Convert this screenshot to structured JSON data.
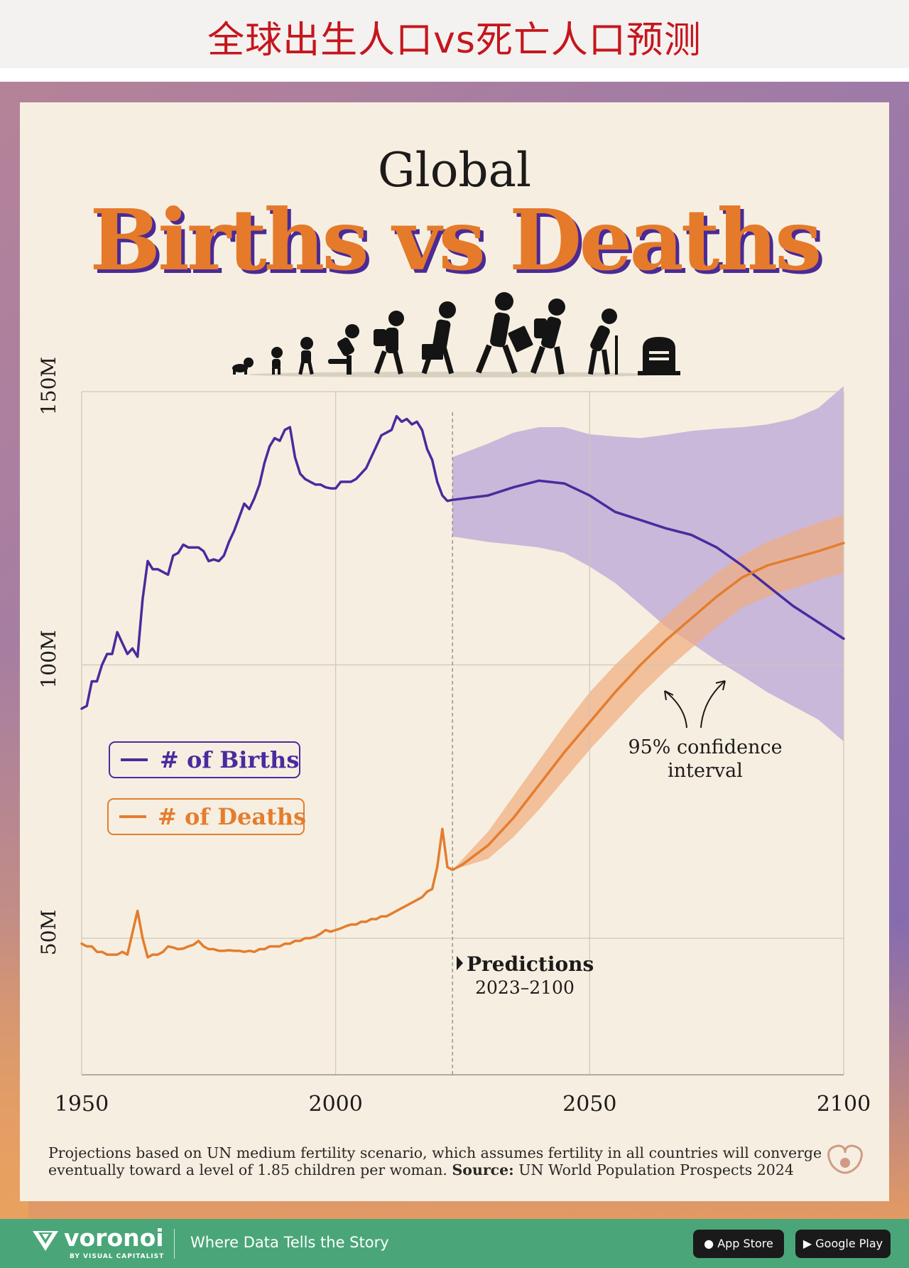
{
  "banner_title": "全球出生人口vs死亡人口预测",
  "header": {
    "line1": "Global",
    "line2": "Births vs Deaths"
  },
  "legend": {
    "births": "# of Births",
    "deaths": "# of Deaths"
  },
  "annotation_ci": {
    "line1": "95% confidence",
    "line2": "interval"
  },
  "annotation_pred": {
    "line1": "Predictions",
    "line2": "2023–2100"
  },
  "note": {
    "line1": "Projections based on UN medium fertility scenario, which assumes fertility in all countries will converge",
    "line2_a": "eventually toward a level of 1.85 children per woman. ",
    "line2_b": "Source:",
    "line2_c": " UN World Population Prospects 2024"
  },
  "footer": {
    "brand": "voronoi",
    "brand_sub": "BY VISUAL CAPITALIST",
    "tagline": "Where Data Tells the Story",
    "store1": "App Store",
    "store2": "Google Play"
  },
  "colors": {
    "births": "#4a2b9e",
    "deaths": "#e47d2e",
    "births_ci": "#b9a6d6",
    "deaths_ci": "#f0ad80",
    "title_orange": "#e57a2b",
    "title_shadow": "#4b2a96",
    "banner_red": "#c5161d",
    "footer_green": "#4aa678"
  },
  "icons": [
    "baby-crawling-icon",
    "toddler-icon",
    "child-icon",
    "kid-running-icon",
    "student-backpack-icon",
    "worker-briefcase-icon",
    "adult-walking-icon",
    "elder-backpack-icon",
    "elder-cane-icon",
    "gravestone-icon",
    "voronoi-logo-icon",
    "apple-icon",
    "google-play-icon",
    "visual-capitalist-mark-icon"
  ],
  "chart_data": {
    "type": "line",
    "title": "Global Births vs Deaths",
    "xlabel": "",
    "ylabel": "",
    "xlim": [
      1950,
      2100
    ],
    "ylim": [
      25,
      150
    ],
    "x_ticks": [
      1950,
      2000,
      2050,
      2100
    ],
    "y_ticks": [
      {
        "value": 50,
        "label": "50M"
      },
      {
        "value": 100,
        "label": "100M"
      },
      {
        "value": 150,
        "label": "150M"
      }
    ],
    "grid": true,
    "legend_position": "left",
    "prediction_start": 2023,
    "series": [
      {
        "name": "# of Births",
        "color": "#4a2b9e",
        "points": [
          [
            1950,
            92
          ],
          [
            1951,
            92.5
          ],
          [
            1952,
            97
          ],
          [
            1953,
            97
          ],
          [
            1954,
            100
          ],
          [
            1955,
            102
          ],
          [
            1956,
            102
          ],
          [
            1957,
            106
          ],
          [
            1958,
            104
          ],
          [
            1959,
            102
          ],
          [
            1960,
            103
          ],
          [
            1961,
            101.5
          ],
          [
            1962,
            112
          ],
          [
            1963,
            119
          ],
          [
            1964,
            117.5
          ],
          [
            1965,
            117.5
          ],
          [
            1966,
            117
          ],
          [
            1967,
            116.5
          ],
          [
            1968,
            120
          ],
          [
            1969,
            120.5
          ],
          [
            1970,
            122
          ],
          [
            1971,
            121.5
          ],
          [
            1972,
            121.5
          ],
          [
            1973,
            121.5
          ],
          [
            1974,
            120.8
          ],
          [
            1975,
            119
          ],
          [
            1976,
            119.3
          ],
          [
            1977,
            119
          ],
          [
            1978,
            120
          ],
          [
            1979,
            122.5
          ],
          [
            1980,
            124.5
          ],
          [
            1981,
            127
          ],
          [
            1982,
            129.5
          ],
          [
            1983,
            128.5
          ],
          [
            1984,
            130.5
          ],
          [
            1985,
            133
          ],
          [
            1986,
            137
          ],
          [
            1987,
            140
          ],
          [
            1988,
            141.5
          ],
          [
            1989,
            141
          ],
          [
            1990,
            143
          ],
          [
            1991,
            143.5
          ],
          [
            1992,
            138
          ],
          [
            1993,
            135
          ],
          [
            1994,
            134
          ],
          [
            1995,
            133.5
          ],
          [
            1996,
            133
          ],
          [
            1997,
            133
          ],
          [
            1998,
            132.5
          ],
          [
            1999,
            132.3
          ],
          [
            2000,
            132.3
          ],
          [
            2001,
            133.5
          ],
          [
            2002,
            133.5
          ],
          [
            2003,
            133.5
          ],
          [
            2004,
            134
          ],
          [
            2005,
            135
          ],
          [
            2006,
            136
          ],
          [
            2007,
            138
          ],
          [
            2008,
            140
          ],
          [
            2009,
            142
          ],
          [
            2010,
            142.5
          ],
          [
            2011,
            143
          ],
          [
            2012,
            145.5
          ],
          [
            2013,
            144.5
          ],
          [
            2014,
            145
          ],
          [
            2015,
            144
          ],
          [
            2016,
            144.5
          ],
          [
            2017,
            143
          ],
          [
            2018,
            139.5
          ],
          [
            2019,
            137.5
          ],
          [
            2020,
            133.5
          ],
          [
            2021,
            131
          ],
          [
            2022,
            130
          ],
          [
            2023,
            130.2
          ],
          [
            2030,
            131
          ],
          [
            2035,
            132.5
          ],
          [
            2040,
            133.7
          ],
          [
            2045,
            133.2
          ],
          [
            2050,
            131
          ],
          [
            2055,
            128
          ],
          [
            2060,
            126.5
          ],
          [
            2065,
            125
          ],
          [
            2070,
            123.8
          ],
          [
            2075,
            121.5
          ],
          [
            2080,
            118.2
          ],
          [
            2085,
            114.5
          ],
          [
            2090,
            110.8
          ],
          [
            2095,
            107.8
          ],
          [
            2100,
            104.8
          ]
        ]
      },
      {
        "name": "# of Deaths",
        "color": "#e47d2e",
        "points": [
          [
            1950,
            49
          ],
          [
            1951,
            48.5
          ],
          [
            1952,
            48.5
          ],
          [
            1953,
            47.5
          ],
          [
            1954,
            47.5
          ],
          [
            1955,
            47
          ],
          [
            1956,
            47
          ],
          [
            1957,
            47
          ],
          [
            1958,
            47.5
          ],
          [
            1959,
            47
          ],
          [
            1960,
            51
          ],
          [
            1961,
            55
          ],
          [
            1962,
            50
          ],
          [
            1963,
            46.5
          ],
          [
            1964,
            47
          ],
          [
            1965,
            47
          ],
          [
            1966,
            47.5
          ],
          [
            1967,
            48.5
          ],
          [
            1968,
            48.3
          ],
          [
            1969,
            48
          ],
          [
            1970,
            48.1
          ],
          [
            1971,
            48.5
          ],
          [
            1972,
            48.8
          ],
          [
            1973,
            49.5
          ],
          [
            1974,
            48.5
          ],
          [
            1975,
            48
          ],
          [
            1976,
            48
          ],
          [
            1977,
            47.7
          ],
          [
            1978,
            47.7
          ],
          [
            1979,
            47.8
          ],
          [
            1980,
            47.7
          ],
          [
            1981,
            47.7
          ],
          [
            1982,
            47.5
          ],
          [
            1983,
            47.7
          ],
          [
            1984,
            47.5
          ],
          [
            1985,
            48
          ],
          [
            1986,
            48
          ],
          [
            1987,
            48.5
          ],
          [
            1988,
            48.5
          ],
          [
            1989,
            48.5
          ],
          [
            1990,
            49
          ],
          [
            1991,
            49
          ],
          [
            1992,
            49.5
          ],
          [
            1993,
            49.5
          ],
          [
            1994,
            50
          ],
          [
            1995,
            50
          ],
          [
            1996,
            50.3
          ],
          [
            1997,
            50.8
          ],
          [
            1998,
            51.5
          ],
          [
            1999,
            51.2
          ],
          [
            2000,
            51.5
          ],
          [
            2001,
            51.8
          ],
          [
            2002,
            52.2
          ],
          [
            2003,
            52.5
          ],
          [
            2004,
            52.5
          ],
          [
            2005,
            53
          ],
          [
            2006,
            53
          ],
          [
            2007,
            53.5
          ],
          [
            2008,
            53.5
          ],
          [
            2009,
            54
          ],
          [
            2010,
            54
          ],
          [
            2011,
            54.5
          ],
          [
            2012,
            55
          ],
          [
            2013,
            55.5
          ],
          [
            2014,
            56
          ],
          [
            2015,
            56.5
          ],
          [
            2016,
            57
          ],
          [
            2017,
            57.5
          ],
          [
            2018,
            58.5
          ],
          [
            2019,
            59
          ],
          [
            2020,
            63
          ],
          [
            2021,
            70
          ],
          [
            2022,
            63
          ],
          [
            2023,
            62.5
          ],
          [
            2025,
            63.5
          ],
          [
            2030,
            67
          ],
          [
            2035,
            72
          ],
          [
            2040,
            78
          ],
          [
            2045,
            84
          ],
          [
            2050,
            89.5
          ],
          [
            2055,
            95
          ],
          [
            2060,
            100
          ],
          [
            2065,
            104.5
          ],
          [
            2070,
            108.5
          ],
          [
            2075,
            112.5
          ],
          [
            2080,
            116
          ],
          [
            2085,
            118.2
          ],
          [
            2090,
            119.5
          ],
          [
            2095,
            120.8
          ],
          [
            2100,
            122.3
          ]
        ]
      }
    ],
    "confidence_intervals": [
      {
        "series": "# of Births",
        "x": [
          2023,
          2030,
          2035,
          2040,
          2045,
          2050,
          2055,
          2060,
          2065,
          2070,
          2075,
          2080,
          2085,
          2090,
          2095,
          2100
        ],
        "lower": [
          123.5,
          122.5,
          122,
          121.5,
          120.5,
          118,
          115,
          111,
          107,
          104,
          100.8,
          98,
          95,
          92.5,
          90,
          86
        ],
        "upper": [
          138,
          140.5,
          142.5,
          143.5,
          143.5,
          142.2,
          141.8,
          141.5,
          142.1,
          142.8,
          143.2,
          143.5,
          144,
          145,
          147,
          151
        ]
      },
      {
        "series": "# of Deaths",
        "x": [
          2023,
          2030,
          2035,
          2040,
          2045,
          2050,
          2055,
          2060,
          2065,
          2070,
          2075,
          2080,
          2085,
          2090,
          2095,
          2100
        ],
        "lower": [
          62.5,
          64.5,
          68.5,
          73.5,
          79,
          84.5,
          89.5,
          94.5,
          99,
          103,
          107,
          110.5,
          112.5,
          114,
          115.5,
          116.8
        ],
        "upper": [
          62.5,
          69.5,
          76,
          82.5,
          89,
          95,
          100,
          104.5,
          109,
          113,
          116.8,
          120,
          122.5,
          124.3,
          126,
          127.5
        ]
      }
    ]
  }
}
